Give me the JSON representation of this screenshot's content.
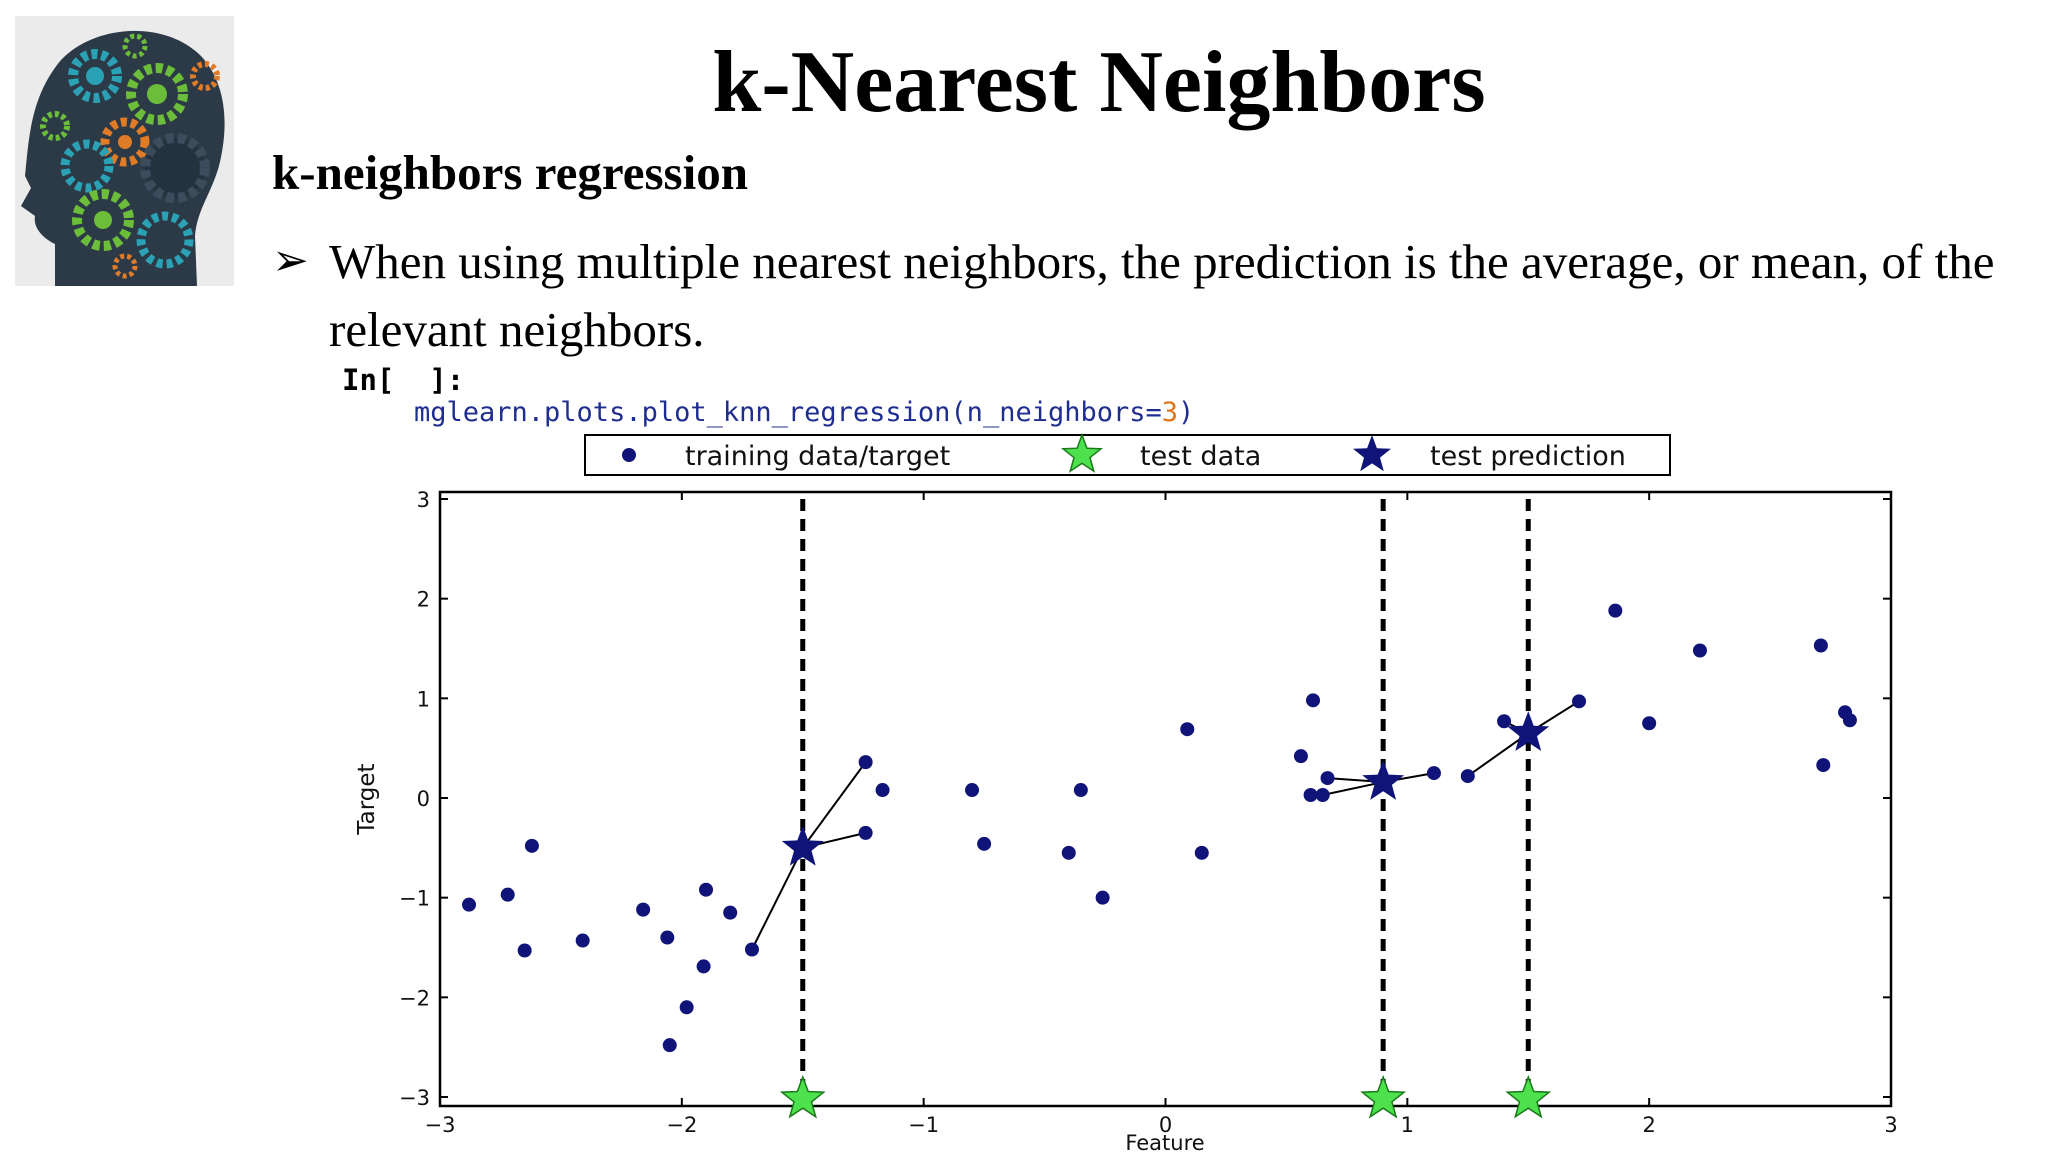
{
  "slide": {
    "title": "k-Nearest Neighbors",
    "subtitle": "k-neighbors regression",
    "bullet": "When using multiple nearest neighbors, the prediction is the average, or mean, of the relevant neighbors.",
    "bullet_marker": "➢"
  },
  "code": {
    "prompt": "In[  ]:",
    "fn": "mglearn.plots.plot_knn_regression(n_neighbors=",
    "arg": "3",
    "close": ")"
  },
  "logo": {
    "icon": "head-with-gears-icon"
  },
  "chart_data": {
    "type": "scatter",
    "xlabel": "Feature",
    "ylabel": "Target",
    "xlim": [
      -3,
      3
    ],
    "ylim": [
      -3,
      3
    ],
    "xticks": [
      "−3",
      "−2",
      "−1",
      "0",
      "1",
      "2",
      "3"
    ],
    "yticks": [
      "3",
      "2",
      "1",
      "0",
      "−1",
      "−2",
      "−3"
    ],
    "legend_placement": "top",
    "legend": [
      "training data/target",
      "test data",
      "test prediction"
    ],
    "training": {
      "name": "training data/target",
      "color": "#101478",
      "points": [
        [
          -2.88,
          -1.07
        ],
        [
          -2.72,
          -0.97
        ],
        [
          -2.65,
          -1.53
        ],
        [
          -2.62,
          -0.48
        ],
        [
          -2.41,
          -1.43
        ],
        [
          -2.16,
          -1.12
        ],
        [
          -2.06,
          -1.4
        ],
        [
          -2.05,
          -2.48
        ],
        [
          -1.98,
          -2.1
        ],
        [
          -1.91,
          -1.69
        ],
        [
          -1.9,
          -0.92
        ],
        [
          -1.8,
          -1.15
        ],
        [
          -1.71,
          -1.52
        ],
        [
          -1.24,
          0.36
        ],
        [
          -1.24,
          -0.35
        ],
        [
          -1.17,
          0.08
        ],
        [
          -0.8,
          0.08
        ],
        [
          -0.75,
          -0.46
        ],
        [
          -0.4,
          -0.55
        ],
        [
          -0.35,
          0.08
        ],
        [
          -0.26,
          -1.0
        ],
        [
          0.09,
          0.69
        ],
        [
          0.15,
          -0.55
        ],
        [
          0.56,
          0.42
        ],
        [
          0.6,
          0.03
        ],
        [
          0.61,
          0.98
        ],
        [
          0.65,
          0.03
        ],
        [
          0.67,
          0.2
        ],
        [
          1.11,
          0.25
        ],
        [
          1.25,
          0.22
        ],
        [
          1.4,
          0.77
        ],
        [
          1.71,
          0.97
        ],
        [
          1.86,
          1.88
        ],
        [
          2.0,
          0.75
        ],
        [
          2.21,
          1.48
        ],
        [
          2.71,
          1.53
        ],
        [
          2.72,
          0.33
        ],
        [
          2.81,
          0.86
        ],
        [
          2.83,
          0.78
        ]
      ]
    },
    "test": {
      "name": "test data",
      "color": "#4ee14e",
      "x": [
        -1.5,
        0.9,
        1.5
      ],
      "y": [
        -3.0,
        -3.0,
        -3.0
      ]
    },
    "prediction": {
      "name": "test prediction",
      "color": "#101478",
      "points": [
        [
          -1.5,
          -0.5
        ],
        [
          0.9,
          0.16
        ],
        [
          1.5,
          0.65
        ]
      ],
      "neighbors": [
        [
          [
            -1.71,
            -1.52
          ],
          [
            -1.24,
            0.36
          ],
          [
            -1.24,
            -0.35
          ]
        ],
        [
          [
            0.65,
            0.03
          ],
          [
            0.67,
            0.2
          ],
          [
            1.11,
            0.25
          ]
        ],
        [
          [
            1.25,
            0.22
          ],
          [
            1.4,
            0.77
          ],
          [
            1.71,
            0.97
          ]
        ]
      ]
    },
    "grid": false
  }
}
